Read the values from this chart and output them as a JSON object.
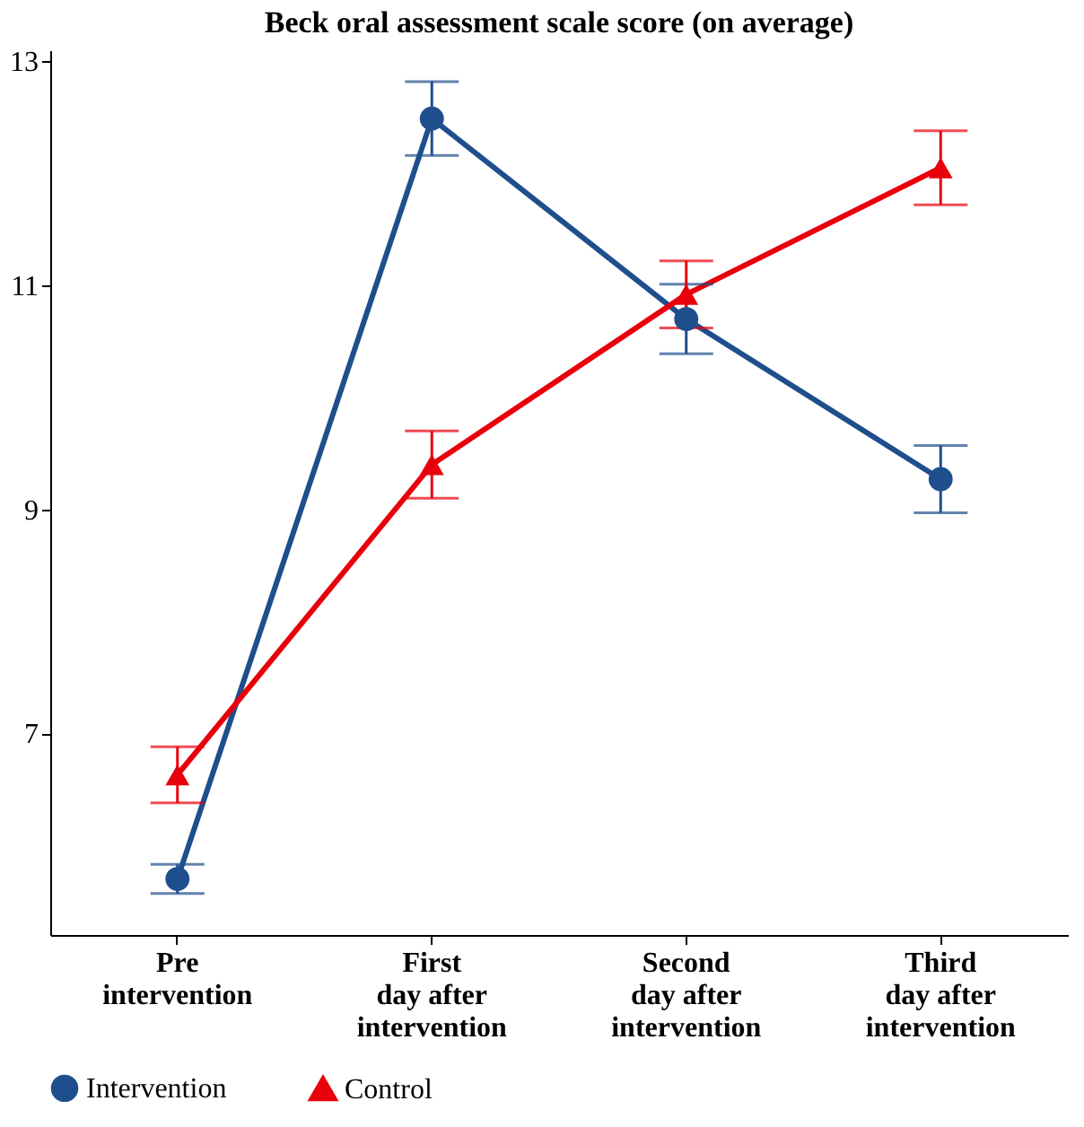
{
  "chart_data": {
    "type": "line",
    "title": "Beck oral assessment scale score (on average)",
    "categories": [
      "Pre\nintervention",
      "First\nday after\nintervention",
      "Second\nday after\nintervention",
      "Third\nday after\nintervention"
    ],
    "series": [
      {
        "name": "Intervention",
        "color": "#1f4e8c",
        "marker": "circle",
        "values": [
          5.7,
          12.49,
          10.7,
          9.27
        ],
        "errors": [
          0.13,
          0.33,
          0.31,
          0.3
        ]
      },
      {
        "name": "Control",
        "color": "#e8000b",
        "marker": "triangle",
        "values": [
          6.63,
          9.4,
          10.92,
          12.05
        ],
        "errors": [
          0.25,
          0.3,
          0.3,
          0.33
        ]
      }
    ],
    "ylim": [
      5.2,
      13.1
    ],
    "yticks": [
      7,
      9,
      11,
      13
    ],
    "grid": false,
    "legend": "bottom",
    "line_style": "solid"
  }
}
